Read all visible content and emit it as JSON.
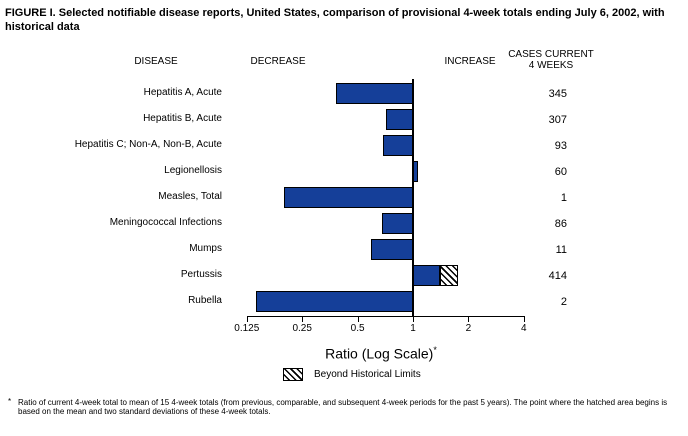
{
  "title": "FIGURE I. Selected notifiable disease reports, United States, comparison of provisional 4-week totals ending July 6, 2002, with historical data",
  "headers": {
    "disease": "DISEASE",
    "decrease": "DECREASE",
    "increase": "INCREASE",
    "cases_line1": "CASES CURRENT",
    "cases_line2": "4 WEEKS"
  },
  "chart_data": {
    "type": "bar",
    "orientation": "horizontal",
    "scale": "log2",
    "baseline": 1,
    "axis_ticks": [
      0.125,
      0.25,
      0.5,
      1,
      2,
      4
    ],
    "tick_labels": [
      "0.125",
      "0.25",
      "0.5",
      "1",
      "2",
      "4"
    ],
    "xlabel": "Ratio (Log Scale)",
    "xlabel_superscript": "*",
    "bar_color": "#153f99",
    "legend": "Beyond Historical Limits",
    "rows": [
      {
        "disease": "Hepatitis A, Acute",
        "ratio": 0.38,
        "cases": "345",
        "beyond_limit_ratio": null
      },
      {
        "disease": "Hepatitis B, Acute",
        "ratio": 0.71,
        "cases": "307",
        "beyond_limit_ratio": null
      },
      {
        "disease": "Hepatitis C; Non-A, Non-B, Acute",
        "ratio": 0.69,
        "cases": "93",
        "beyond_limit_ratio": null
      },
      {
        "disease": "Legionellosis",
        "ratio": 1.07,
        "cases": "60",
        "beyond_limit_ratio": null
      },
      {
        "disease": "Measles, Total",
        "ratio": 0.2,
        "cases": "1",
        "beyond_limit_ratio": null
      },
      {
        "disease": "Meningococcal Infections",
        "ratio": 0.68,
        "cases": "86",
        "beyond_limit_ratio": null
      },
      {
        "disease": "Mumps",
        "ratio": 0.59,
        "cases": "11",
        "beyond_limit_ratio": null
      },
      {
        "disease": "Pertussis",
        "ratio": 1.4,
        "cases": "414",
        "beyond_limit_ratio": 1.76
      },
      {
        "disease": "Rubella",
        "ratio": 0.14,
        "cases": "2",
        "beyond_limit_ratio": null
      }
    ]
  },
  "footnote": {
    "marker": "*",
    "text": "Ratio of current 4-week total to mean of 15 4-week totals (from previous, comparable, and subsequent 4-week periods for the past 5 years). The point where the hatched area begins is based on the mean and two standard deviations of these 4-week totals."
  }
}
